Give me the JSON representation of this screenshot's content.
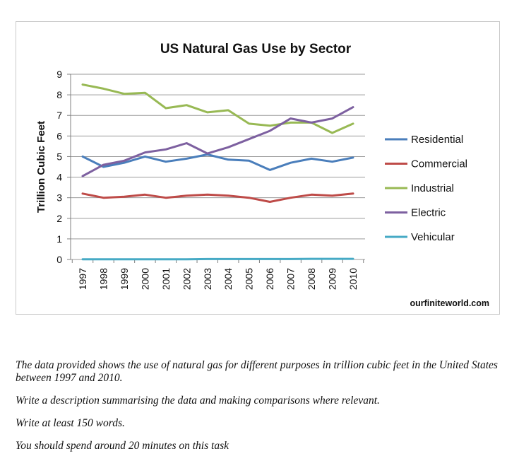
{
  "chart_data": {
    "type": "line",
    "title": "US Natural Gas Use by Sector",
    "xlabel": "",
    "ylabel": "Trillion Cubic Feet",
    "ylim": [
      0,
      9
    ],
    "yticks": [
      "0",
      "1",
      "2",
      "3",
      "4",
      "5",
      "6",
      "7",
      "8",
      "9"
    ],
    "categories": [
      "1997",
      "1998",
      "1999",
      "2000",
      "2001",
      "2002",
      "2003",
      "2004",
      "2005",
      "2006",
      "2007",
      "2008",
      "2009",
      "2010"
    ],
    "grid": true,
    "legend_position": "right",
    "source": "ourfiniteworld.com",
    "series": [
      {
        "name": "Residential",
        "color": "#4a7ebb",
        "values": [
          5.0,
          4.5,
          4.7,
          5.0,
          4.75,
          4.9,
          5.1,
          4.85,
          4.8,
          4.35,
          4.7,
          4.9,
          4.75,
          4.95
        ]
      },
      {
        "name": "Commercial",
        "color": "#be4b48",
        "values": [
          3.2,
          3.0,
          3.05,
          3.15,
          3.0,
          3.1,
          3.15,
          3.1,
          3.0,
          2.8,
          3.0,
          3.15,
          3.1,
          3.2
        ]
      },
      {
        "name": "Industrial",
        "color": "#98b954",
        "values": [
          8.5,
          8.3,
          8.05,
          8.1,
          7.35,
          7.5,
          7.15,
          7.25,
          6.6,
          6.5,
          6.65,
          6.65,
          6.15,
          6.6
        ]
      },
      {
        "name": "Electric",
        "color": "#7d60a0",
        "values": [
          4.05,
          4.6,
          4.8,
          5.2,
          5.35,
          5.65,
          5.15,
          5.45,
          5.85,
          6.25,
          6.85,
          6.65,
          6.85,
          7.4
        ]
      },
      {
        "name": "Vehicular",
        "color": "#46aac5",
        "values": [
          0.01,
          0.01,
          0.01,
          0.01,
          0.01,
          0.01,
          0.02,
          0.02,
          0.02,
          0.02,
          0.02,
          0.03,
          0.03,
          0.03
        ]
      }
    ]
  },
  "task": {
    "line1": "The data provided shows the use of natural gas for different purposes in trillion cubic feet in the United States between 1997 and 2010.",
    "line2": "Write a description summarising the data and making comparisons where relevant.",
    "line3": "Write at least 150 words.",
    "line4": "You should spend around 20 minutes on this task"
  }
}
